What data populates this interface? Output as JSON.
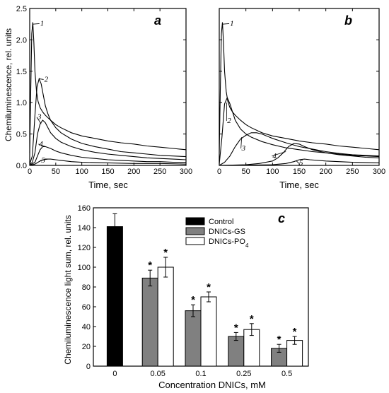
{
  "chart_data": [
    {
      "type": "line",
      "panel_label": "a",
      "xlabel": "Time, sec",
      "ylabel": "Chemiluminescence, rel. units",
      "xlim": [
        0,
        300
      ],
      "ylim": [
        0,
        2.5
      ],
      "xticks": [
        "0",
        "50",
        "100",
        "150",
        "200",
        "250",
        "300"
      ],
      "yticks": [
        "0.0",
        "0.5",
        "1.0",
        "1.5",
        "2.0",
        "2.5"
      ],
      "series": [
        {
          "name": "1",
          "x": [
            0,
            2,
            4,
            6,
            8,
            10,
            13,
            16,
            20,
            25,
            30,
            40,
            50,
            60,
            80,
            100,
            125,
            150,
            175,
            200,
            225,
            250,
            275,
            300
          ],
          "y": [
            0.2,
            1.2,
            2.1,
            2.28,
            1.95,
            1.5,
            1.18,
            1.02,
            0.92,
            0.85,
            0.8,
            0.72,
            0.65,
            0.6,
            0.52,
            0.47,
            0.43,
            0.39,
            0.36,
            0.34,
            0.31,
            0.29,
            0.27,
            0.25
          ]
        },
        {
          "name": "2",
          "x": [
            0,
            5,
            10,
            14,
            18,
            22,
            26,
            30,
            35,
            40,
            50,
            60,
            80,
            100,
            125,
            150,
            175,
            200,
            225,
            250,
            275,
            300
          ],
          "y": [
            0.02,
            0.15,
            0.8,
            1.25,
            1.38,
            1.3,
            1.12,
            0.95,
            0.82,
            0.72,
            0.6,
            0.52,
            0.42,
            0.35,
            0.3,
            0.26,
            0.22,
            0.2,
            0.18,
            0.16,
            0.15,
            0.14
          ]
        },
        {
          "name": "3",
          "x": [
            0,
            5,
            10,
            15,
            20,
            25,
            30,
            35,
            40,
            50,
            60,
            80,
            100,
            125,
            150,
            175,
            200,
            225,
            250,
            275,
            300
          ],
          "y": [
            0.01,
            0.05,
            0.2,
            0.5,
            0.66,
            0.72,
            0.68,
            0.6,
            0.52,
            0.43,
            0.37,
            0.3,
            0.25,
            0.21,
            0.18,
            0.16,
            0.14,
            0.12,
            0.11,
            0.1,
            0.09
          ]
        },
        {
          "name": "4",
          "x": [
            0,
            10,
            15,
            20,
            25,
            30,
            40,
            50,
            60,
            80,
            100,
            125,
            150,
            175,
            200,
            225,
            250,
            275,
            300
          ],
          "y": [
            0,
            0.05,
            0.15,
            0.25,
            0.3,
            0.3,
            0.27,
            0.23,
            0.2,
            0.16,
            0.13,
            0.11,
            0.09,
            0.08,
            0.07,
            0.06,
            0.06,
            0.05,
            0.05
          ]
        },
        {
          "name": "5",
          "x": [
            0,
            10,
            20,
            30,
            40,
            50,
            60,
            80,
            100,
            150,
            200,
            250,
            300
          ],
          "y": [
            0,
            0.02,
            0.07,
            0.1,
            0.1,
            0.09,
            0.08,
            0.06,
            0.05,
            0.04,
            0.03,
            0.03,
            0.02
          ]
        }
      ]
    },
    {
      "type": "line",
      "panel_label": "b",
      "xlabel": "Time, sec",
      "xlim": [
        0,
        300
      ],
      "ylim": [
        0,
        2.5
      ],
      "xticks": [
        "0",
        "50",
        "100",
        "150",
        "200",
        "250",
        "300"
      ],
      "yticks": [
        "0.0",
        "0.5",
        "1.0",
        "1.5",
        "2.0",
        "2.5"
      ],
      "series": [
        {
          "name": "1",
          "x": [
            0,
            2,
            4,
            6,
            8,
            10,
            13,
            16,
            20,
            25,
            30,
            40,
            50,
            60,
            80,
            100,
            125,
            150,
            175,
            200,
            225,
            250,
            275,
            300
          ],
          "y": [
            0.2,
            1.2,
            2.1,
            2.28,
            1.95,
            1.5,
            1.18,
            1.02,
            0.92,
            0.85,
            0.8,
            0.72,
            0.65,
            0.6,
            0.52,
            0.47,
            0.43,
            0.39,
            0.36,
            0.34,
            0.31,
            0.29,
            0.27,
            0.25
          ]
        },
        {
          "name": "2",
          "x": [
            0,
            5,
            10,
            15,
            20,
            25,
            30,
            40,
            50,
            60,
            80,
            100,
            125,
            150,
            175,
            200,
            225,
            250,
            275,
            300
          ],
          "y": [
            0.02,
            0.45,
            0.98,
            1.08,
            0.98,
            0.85,
            0.72,
            0.58,
            0.5,
            0.45,
            0.38,
            0.33,
            0.28,
            0.25,
            0.22,
            0.2,
            0.18,
            0.16,
            0.15,
            0.14
          ]
        },
        {
          "name": "3",
          "x": [
            0,
            10,
            20,
            30,
            40,
            50,
            60,
            70,
            80,
            100,
            125,
            150,
            175,
            200,
            225,
            250,
            275,
            300
          ],
          "y": [
            0,
            0.05,
            0.15,
            0.3,
            0.42,
            0.48,
            0.52,
            0.52,
            0.5,
            0.43,
            0.36,
            0.3,
            0.26,
            0.22,
            0.19,
            0.17,
            0.16,
            0.15
          ]
        },
        {
          "name": "4",
          "x": [
            0,
            50,
            75,
            100,
            110,
            120,
            130,
            140,
            150,
            160,
            175,
            200,
            225,
            250,
            275,
            300
          ],
          "y": [
            0,
            0.01,
            0.03,
            0.07,
            0.12,
            0.2,
            0.3,
            0.35,
            0.34,
            0.3,
            0.25,
            0.2,
            0.17,
            0.15,
            0.13,
            0.12
          ]
        },
        {
          "name": "5",
          "x": [
            0,
            100,
            125,
            140,
            150,
            160,
            170,
            200,
            250,
            300
          ],
          "y": [
            0,
            0.01,
            0.03,
            0.06,
            0.09,
            0.1,
            0.09,
            0.07,
            0.05,
            0.04
          ]
        }
      ]
    },
    {
      "type": "bar",
      "panel_label": "c",
      "xlabel": "Concentration DNICs, mM",
      "ylabel": "Chemiluminescence light sum, rel. units",
      "ylim": [
        0,
        160
      ],
      "yticks": [
        "0",
        "20",
        "40",
        "60",
        "80",
        "100",
        "120",
        "140",
        "160"
      ],
      "categories": [
        "0",
        "0.05",
        "0.1",
        "0.25",
        "0.5"
      ],
      "legend": {
        "position": "top-right",
        "entries": [
          "Control",
          "DNICs-GS",
          "DNICs-PO4"
        ]
      },
      "series": [
        {
          "name": "Control",
          "color": "#000000",
          "values": [
            141,
            null,
            null,
            null,
            null
          ],
          "errors": [
            13,
            null,
            null,
            null,
            null
          ]
        },
        {
          "name": "DNICs-GS",
          "color": "#808080",
          "values": [
            null,
            89,
            56,
            30,
            18
          ],
          "errors": [
            null,
            8,
            6,
            4,
            4
          ],
          "significant": [
            false,
            true,
            true,
            true,
            true
          ]
        },
        {
          "name": "DNICs-PO4",
          "color": "#ffffff",
          "values": [
            null,
            100,
            70,
            37,
            26
          ],
          "errors": [
            null,
            10,
            5,
            6,
            4
          ],
          "significant": [
            false,
            true,
            true,
            true,
            true
          ]
        }
      ],
      "significance_marker": "*"
    }
  ]
}
